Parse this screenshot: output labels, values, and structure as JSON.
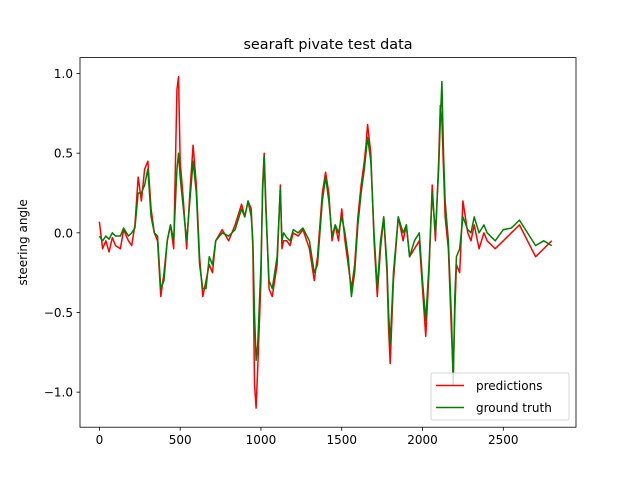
{
  "chart_data": {
    "type": "line",
    "title": "searaft pivate test data",
    "xlabel": "",
    "ylabel": "steering angle",
    "xlim": [
      -120,
      2950
    ],
    "ylim": [
      -1.22,
      1.1
    ],
    "x_ticks": [
      0,
      500,
      1000,
      1500,
      2000,
      2500
    ],
    "y_ticks": [
      -1.0,
      -0.5,
      0.0,
      0.5,
      1.0
    ],
    "y_tick_labels": [
      "−1.0",
      "−0.5",
      "0.0",
      "0.5",
      "1.0"
    ],
    "grid": false,
    "legend_position": "lower-right",
    "series": [
      {
        "name": "predictions",
        "color": "#ff0000",
        "x": [
          0,
          20,
          40,
          60,
          80,
          100,
          130,
          150,
          180,
          200,
          220,
          240,
          260,
          280,
          300,
          320,
          340,
          360,
          380,
          400,
          420,
          440,
          460,
          480,
          490,
          500,
          520,
          540,
          560,
          580,
          600,
          620,
          640,
          660,
          680,
          700,
          720,
          760,
          800,
          840,
          880,
          900,
          920,
          940,
          950,
          960,
          970,
          980,
          1000,
          1010,
          1020,
          1030,
          1050,
          1070,
          1100,
          1120,
          1130,
          1140,
          1160,
          1180,
          1200,
          1230,
          1260,
          1300,
          1330,
          1350,
          1380,
          1400,
          1420,
          1440,
          1460,
          1480,
          1500,
          1520,
          1540,
          1560,
          1580,
          1600,
          1620,
          1640,
          1650,
          1660,
          1680,
          1700,
          1720,
          1740,
          1760,
          1780,
          1790,
          1800,
          1820,
          1850,
          1880,
          1900,
          1920,
          1950,
          1980,
          2000,
          2020,
          2040,
          2060,
          2080,
          2100,
          2110,
          2120,
          2130,
          2140,
          2160,
          2180,
          2190,
          2200,
          2210,
          2230,
          2250,
          2280,
          2300,
          2320,
          2350,
          2380,
          2400,
          2450,
          2500,
          2550,
          2600,
          2650,
          2700,
          2750,
          2800
        ],
        "values": [
          0.07,
          -0.1,
          -0.05,
          -0.12,
          -0.03,
          -0.08,
          -0.1,
          0.02,
          -0.05,
          -0.08,
          0.05,
          0.35,
          0.2,
          0.4,
          0.45,
          0.15,
          0.0,
          -0.05,
          -0.4,
          -0.25,
          -0.05,
          0.05,
          -0.1,
          0.9,
          0.98,
          0.45,
          0.2,
          -0.1,
          0.25,
          0.55,
          0.3,
          -0.15,
          -0.4,
          -0.3,
          -0.2,
          -0.25,
          -0.05,
          0.02,
          -0.05,
          0.05,
          0.18,
          0.1,
          0.2,
          0.15,
          -0.1,
          -0.95,
          -1.1,
          -0.85,
          -0.3,
          0.3,
          0.5,
          0.2,
          -0.35,
          -0.4,
          -0.2,
          0.3,
          -0.1,
          -0.05,
          -0.05,
          -0.08,
          0.0,
          -0.02,
          0.02,
          -0.1,
          -0.3,
          -0.15,
          0.25,
          0.38,
          0.25,
          -0.05,
          0.05,
          -0.05,
          0.15,
          -0.05,
          -0.2,
          -0.35,
          -0.2,
          0.1,
          0.3,
          0.45,
          0.55,
          0.68,
          0.5,
          -0.05,
          -0.4,
          -0.1,
          0.1,
          -0.25,
          -0.6,
          -0.82,
          -0.3,
          0.1,
          -0.05,
          0.05,
          -0.15,
          -0.1,
          -0.05,
          -0.35,
          -0.65,
          -0.25,
          0.3,
          -0.05,
          0.45,
          0.8,
          0.7,
          0.4,
          0.1,
          -0.1,
          -0.65,
          -0.9,
          -0.5,
          -0.2,
          -0.25,
          0.2,
          0.0,
          -0.05,
          0.05,
          -0.1,
          0.0,
          -0.05,
          -0.1,
          -0.05,
          0.0,
          0.05,
          -0.05,
          -0.15,
          -0.1,
          -0.05
        ]
      },
      {
        "name": "ground truth",
        "color": "#008000",
        "x": [
          0,
          20,
          40,
          60,
          80,
          100,
          130,
          150,
          180,
          200,
          220,
          240,
          260,
          280,
          300,
          320,
          340,
          360,
          380,
          400,
          420,
          440,
          460,
          480,
          490,
          500,
          520,
          540,
          560,
          580,
          600,
          620,
          640,
          660,
          680,
          700,
          720,
          760,
          800,
          840,
          880,
          900,
          920,
          940,
          950,
          960,
          970,
          980,
          1000,
          1010,
          1020,
          1030,
          1050,
          1070,
          1100,
          1120,
          1130,
          1140,
          1160,
          1180,
          1200,
          1230,
          1260,
          1300,
          1330,
          1350,
          1380,
          1400,
          1420,
          1440,
          1460,
          1480,
          1500,
          1520,
          1540,
          1560,
          1580,
          1600,
          1620,
          1640,
          1650,
          1660,
          1680,
          1700,
          1720,
          1740,
          1760,
          1780,
          1790,
          1800,
          1820,
          1850,
          1880,
          1900,
          1920,
          1950,
          1980,
          2000,
          2020,
          2040,
          2060,
          2080,
          2100,
          2110,
          2120,
          2130,
          2140,
          2160,
          2180,
          2190,
          2200,
          2210,
          2230,
          2250,
          2280,
          2300,
          2320,
          2350,
          2380,
          2400,
          2450,
          2500,
          2550,
          2600,
          2650,
          2700,
          2750,
          2800
        ],
        "values": [
          -0.02,
          -0.05,
          -0.02,
          -0.04,
          0.0,
          -0.02,
          -0.02,
          0.03,
          -0.02,
          0.0,
          0.03,
          0.25,
          0.25,
          0.3,
          0.4,
          0.1,
          0.0,
          -0.02,
          -0.35,
          -0.3,
          -0.05,
          0.05,
          -0.05,
          0.4,
          0.5,
          0.35,
          0.15,
          -0.05,
          0.2,
          0.45,
          0.25,
          -0.2,
          -0.35,
          -0.35,
          -0.15,
          -0.2,
          -0.05,
          0.0,
          -0.02,
          0.02,
          0.15,
          0.1,
          0.2,
          0.1,
          -0.05,
          -0.5,
          -0.8,
          -0.7,
          -0.2,
          0.25,
          0.48,
          0.15,
          -0.3,
          -0.35,
          -0.15,
          0.28,
          -0.05,
          0.0,
          -0.03,
          -0.05,
          0.02,
          0.0,
          0.03,
          -0.05,
          -0.25,
          -0.2,
          0.2,
          0.35,
          0.2,
          -0.02,
          0.05,
          0.0,
          0.1,
          0.0,
          -0.15,
          -0.4,
          -0.25,
          0.05,
          0.25,
          0.4,
          0.5,
          0.6,
          0.45,
          0.0,
          -0.35,
          -0.05,
          0.1,
          -0.2,
          -0.5,
          -0.7,
          -0.25,
          0.1,
          0.0,
          0.05,
          -0.15,
          -0.05,
          0.0,
          -0.3,
          -0.55,
          -0.2,
          0.25,
          0.0,
          0.4,
          0.7,
          0.95,
          0.5,
          0.2,
          -0.05,
          -0.55,
          -0.95,
          -0.4,
          -0.15,
          -0.1,
          0.1,
          0.02,
          0.0,
          0.1,
          0.0,
          0.05,
          0.0,
          -0.05,
          0.02,
          0.03,
          0.08,
          0.0,
          -0.08,
          -0.05,
          -0.08
        ]
      }
    ]
  }
}
